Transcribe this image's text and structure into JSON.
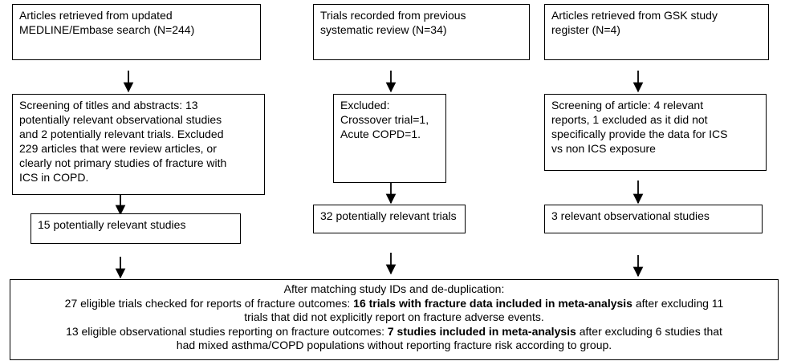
{
  "columns": [
    {
      "source": {
        "lines": [
          "Articles retrieved from updated",
          "MEDLINE/Embase search (N=244)"
        ]
      },
      "screening": {
        "lines": [
          "Screening of titles and abstracts: 13",
          "potentially relevant observational studies",
          "and 2 potentially relevant trials. Excluded",
          "229 articles that were review articles, or",
          "clearly not primary studies of fracture with",
          "ICS in COPD."
        ]
      },
      "result": {
        "lines": [
          "15 potentially relevant studies"
        ]
      }
    },
    {
      "source": {
        "lines": [
          "Trials recorded from previous",
          "systematic review (N=34)"
        ]
      },
      "screening": {
        "lines": [
          "Excluded:",
          "Crossover trial=1,",
          "Acute COPD=1."
        ]
      },
      "result": {
        "lines": [
          "32 potentially relevant trials"
        ]
      }
    },
    {
      "source": {
        "lines": [
          "Articles retrieved from GSK study",
          "register (N=4)"
        ]
      },
      "screening": {
        "lines": [
          "Screening of article: 4 relevant",
          "reports, 1 excluded as it did not",
          "specifically provide the data for ICS",
          "vs non ICS exposure"
        ]
      },
      "result": {
        "lines": [
          "3 relevant observational studies"
        ]
      }
    }
  ],
  "summary": {
    "lines": [
      [
        "After matching study IDs and de-duplication:"
      ],
      [
        "27 eligible trials checked for reports of fracture outcomes: ",
        "16 trials with fracture data included in meta-analysis",
        " after excluding 11"
      ],
      [
        "trials that did not explicitly report on fracture adverse events."
      ],
      [
        "13 eligible observational studies reporting on fracture outcomes: ",
        "7 studies included in meta-analysis",
        " after excluding 6 studies that"
      ],
      [
        "had mixed asthma/COPD populations without reporting fracture risk according to group."
      ]
    ]
  }
}
